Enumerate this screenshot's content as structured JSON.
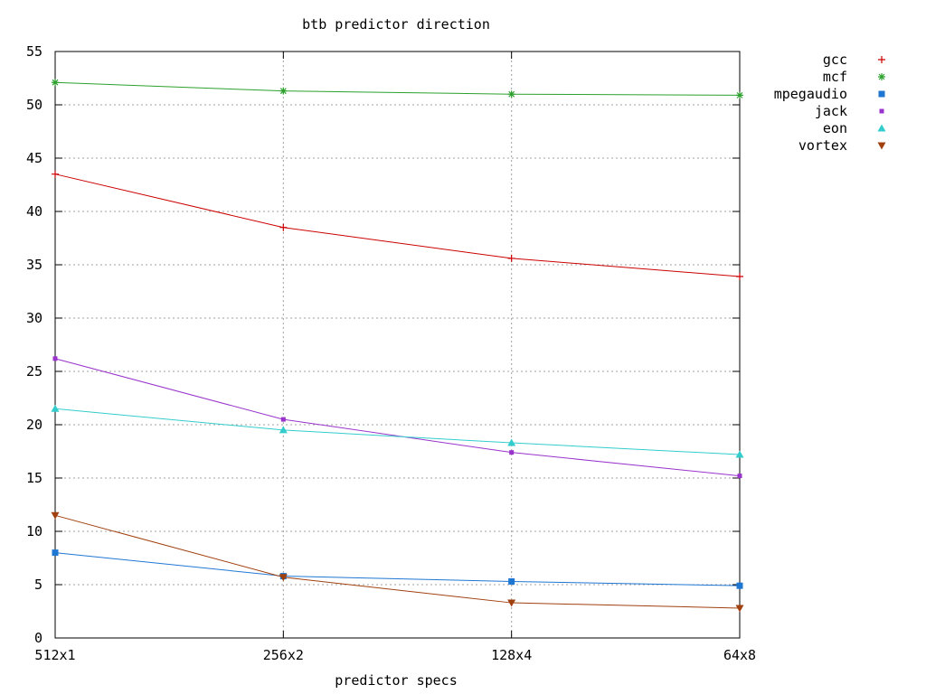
{
  "chart_data": {
    "type": "line",
    "title": "btb predictor direction",
    "xlabel": "predictor specs",
    "ylabel": "",
    "categories": [
      "512x1",
      "256x2",
      "128x4",
      "64x8"
    ],
    "ylim": [
      0,
      55
    ],
    "yticks": [
      0,
      5,
      10,
      15,
      20,
      25,
      30,
      35,
      40,
      45,
      50,
      55
    ],
    "grid": true,
    "legend_position": "right",
    "series": [
      {
        "name": "gcc",
        "color": "#cc0000",
        "marker": "plus",
        "values": [
          43.5,
          38.5,
          35.6,
          33.9
        ]
      },
      {
        "name": "mcf",
        "color": "#2ca02c",
        "marker": "star",
        "values": [
          52.1,
          51.3,
          51.0,
          50.9
        ]
      },
      {
        "name": "mpegaudio",
        "color": "#1f77d4",
        "marker": "square",
        "values": [
          8.0,
          5.8,
          5.3,
          4.9
        ]
      },
      {
        "name": "jack",
        "color": "#9933cc",
        "marker": "dot-square",
        "values": [
          26.2,
          20.5,
          17.4,
          15.2
        ]
      },
      {
        "name": "eon",
        "color": "#33cccc",
        "marker": "triangle-up",
        "values": [
          21.5,
          19.5,
          18.3,
          17.2
        ]
      },
      {
        "name": "vortex",
        "color": "#a0400e",
        "marker": "triangle-down",
        "values": [
          11.5,
          5.7,
          3.3,
          2.8
        ]
      }
    ]
  }
}
